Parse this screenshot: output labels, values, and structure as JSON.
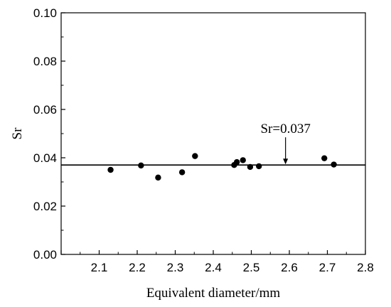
{
  "chart_data": {
    "type": "scatter",
    "title": "",
    "xlabel": "Equivalent diameter/mm",
    "ylabel": "Sr",
    "xlim": [
      2.0,
      2.8
    ],
    "ylim": [
      0.0,
      0.1
    ],
    "xticks": [
      "2.1",
      "2.2",
      "2.3",
      "2.4",
      "2.5",
      "2.6",
      "2.7",
      "2.8"
    ],
    "xtick_values": [
      2.1,
      2.2,
      2.3,
      2.4,
      2.5,
      2.6,
      2.7,
      2.8
    ],
    "yticks": [
      "0.00",
      "0.02",
      "0.04",
      "0.06",
      "0.08",
      "0.10"
    ],
    "ytick_values": [
      0.0,
      0.02,
      0.04,
      0.06,
      0.08,
      0.1
    ],
    "grid": false,
    "points": [
      {
        "x": 2.13,
        "y": 0.035
      },
      {
        "x": 2.21,
        "y": 0.0368
      },
      {
        "x": 2.255,
        "y": 0.0318
      },
      {
        "x": 2.318,
        "y": 0.034
      },
      {
        "x": 2.352,
        "y": 0.0407
      },
      {
        "x": 2.455,
        "y": 0.037
      },
      {
        "x": 2.462,
        "y": 0.0382
      },
      {
        "x": 2.478,
        "y": 0.039
      },
      {
        "x": 2.497,
        "y": 0.0362
      },
      {
        "x": 2.52,
        "y": 0.0365
      },
      {
        "x": 2.692,
        "y": 0.0398
      },
      {
        "x": 2.717,
        "y": 0.0372
      }
    ],
    "reference_line": {
      "y": 0.037
    },
    "annotation": {
      "text": "Sr=0.037",
      "x": 2.59,
      "y": 0.037
    },
    "colors": {
      "marker": "#000000",
      "line": "#000000",
      "axes": "#000000"
    }
  }
}
